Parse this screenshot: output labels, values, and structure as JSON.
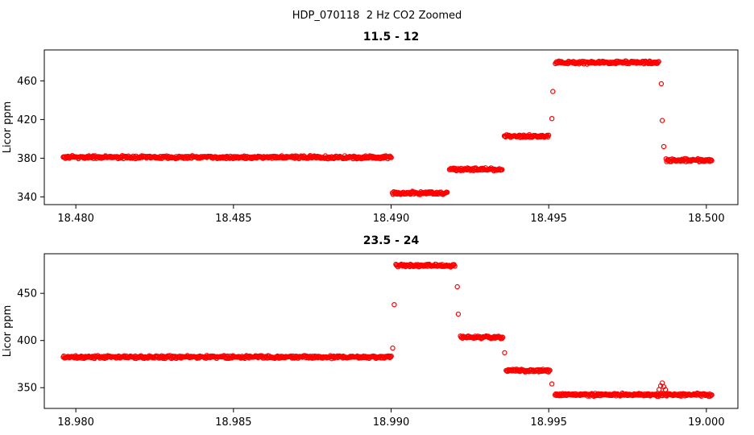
{
  "header": {
    "title": "HDP_070118  2 Hz CO2 Zoomed"
  },
  "chart_data": [
    {
      "type": "scatter",
      "title": "11.5 - 12",
      "ylabel": "Licor ppm",
      "marker": "open-circle",
      "color": "#ff0000",
      "grid": false,
      "legend": "none",
      "xlim": [
        18.479,
        18.501
      ],
      "ylim": [
        332,
        492
      ],
      "xticks": [
        {
          "v": 18.48,
          "label": "18.480"
        },
        {
          "v": 18.485,
          "label": "18.485"
        },
        {
          "v": 18.49,
          "label": "18.490"
        },
        {
          "v": 18.495,
          "label": "18.495"
        },
        {
          "v": 18.5,
          "label": "18.500"
        }
      ],
      "yticks": [
        {
          "v": 340,
          "label": "340"
        },
        {
          "v": 380,
          "label": "380"
        },
        {
          "v": 420,
          "label": "420"
        },
        {
          "v": 460,
          "label": "460"
        }
      ],
      "point_dx": 2.2e-05,
      "noise_ppm": 1.8,
      "segments": [
        {
          "x_start": 18.4796,
          "x_end": 18.49002,
          "level": 381
        },
        {
          "x_start": 18.49004,
          "x_end": 18.4918,
          "level": 344
        },
        {
          "x_start": 18.49185,
          "x_end": 18.49354,
          "level": 368.5
        },
        {
          "x_start": 18.49359,
          "x_end": 18.495,
          "level": 403
        },
        {
          "x_start": 18.49521,
          "x_end": 18.4985,
          "level": 479
        },
        {
          "x_start": 18.49872,
          "x_end": 18.50019,
          "level": 378
        }
      ],
      "extra_points": [
        {
          "x": 18.4951,
          "y": 421
        },
        {
          "x": 18.49513,
          "y": 449
        },
        {
          "x": 18.49857,
          "y": 457
        },
        {
          "x": 18.4986,
          "y": 419
        },
        {
          "x": 18.49865,
          "y": 392
        }
      ]
    },
    {
      "type": "scatter",
      "title": "23.5 - 24",
      "ylabel": "Licor ppm",
      "marker": "open-circle",
      "color": "#ff0000",
      "grid": false,
      "legend": "none",
      "xlim": [
        18.979,
        19.001
      ],
      "ylim": [
        328,
        492
      ],
      "xticks": [
        {
          "v": 18.98,
          "label": "18.980"
        },
        {
          "v": 18.985,
          "label": "18.985"
        },
        {
          "v": 18.99,
          "label": "18.990"
        },
        {
          "v": 18.995,
          "label": "18.995"
        },
        {
          "v": 19.0,
          "label": "19.000"
        }
      ],
      "yticks": [
        {
          "v": 350,
          "label": "350"
        },
        {
          "v": 400,
          "label": "400"
        },
        {
          "v": 450,
          "label": "450"
        }
      ],
      "point_dx": 2.2e-05,
      "noise_ppm": 1.8,
      "segments": [
        {
          "x_start": 18.9796,
          "x_end": 18.99002,
          "level": 382.5
        },
        {
          "x_start": 18.99015,
          "x_end": 18.99203,
          "level": 479.5
        },
        {
          "x_start": 18.9922,
          "x_end": 18.99356,
          "level": 403.5
        },
        {
          "x_start": 18.99365,
          "x_end": 18.99505,
          "level": 368
        },
        {
          "x_start": 18.9952,
          "x_end": 19.00019,
          "level": 342.5
        }
      ],
      "extra_points": [
        {
          "x": 18.99005,
          "y": 392
        },
        {
          "x": 18.9901,
          "y": 438
        },
        {
          "x": 18.9921,
          "y": 457
        },
        {
          "x": 18.99213,
          "y": 428
        },
        {
          "x": 18.9936,
          "y": 387
        },
        {
          "x": 18.9951,
          "y": 354
        },
        {
          "x": 18.9985,
          "y": 348
        },
        {
          "x": 18.99855,
          "y": 352
        },
        {
          "x": 18.9986,
          "y": 355
        },
        {
          "x": 18.99865,
          "y": 351
        },
        {
          "x": 18.9987,
          "y": 348
        }
      ]
    }
  ]
}
